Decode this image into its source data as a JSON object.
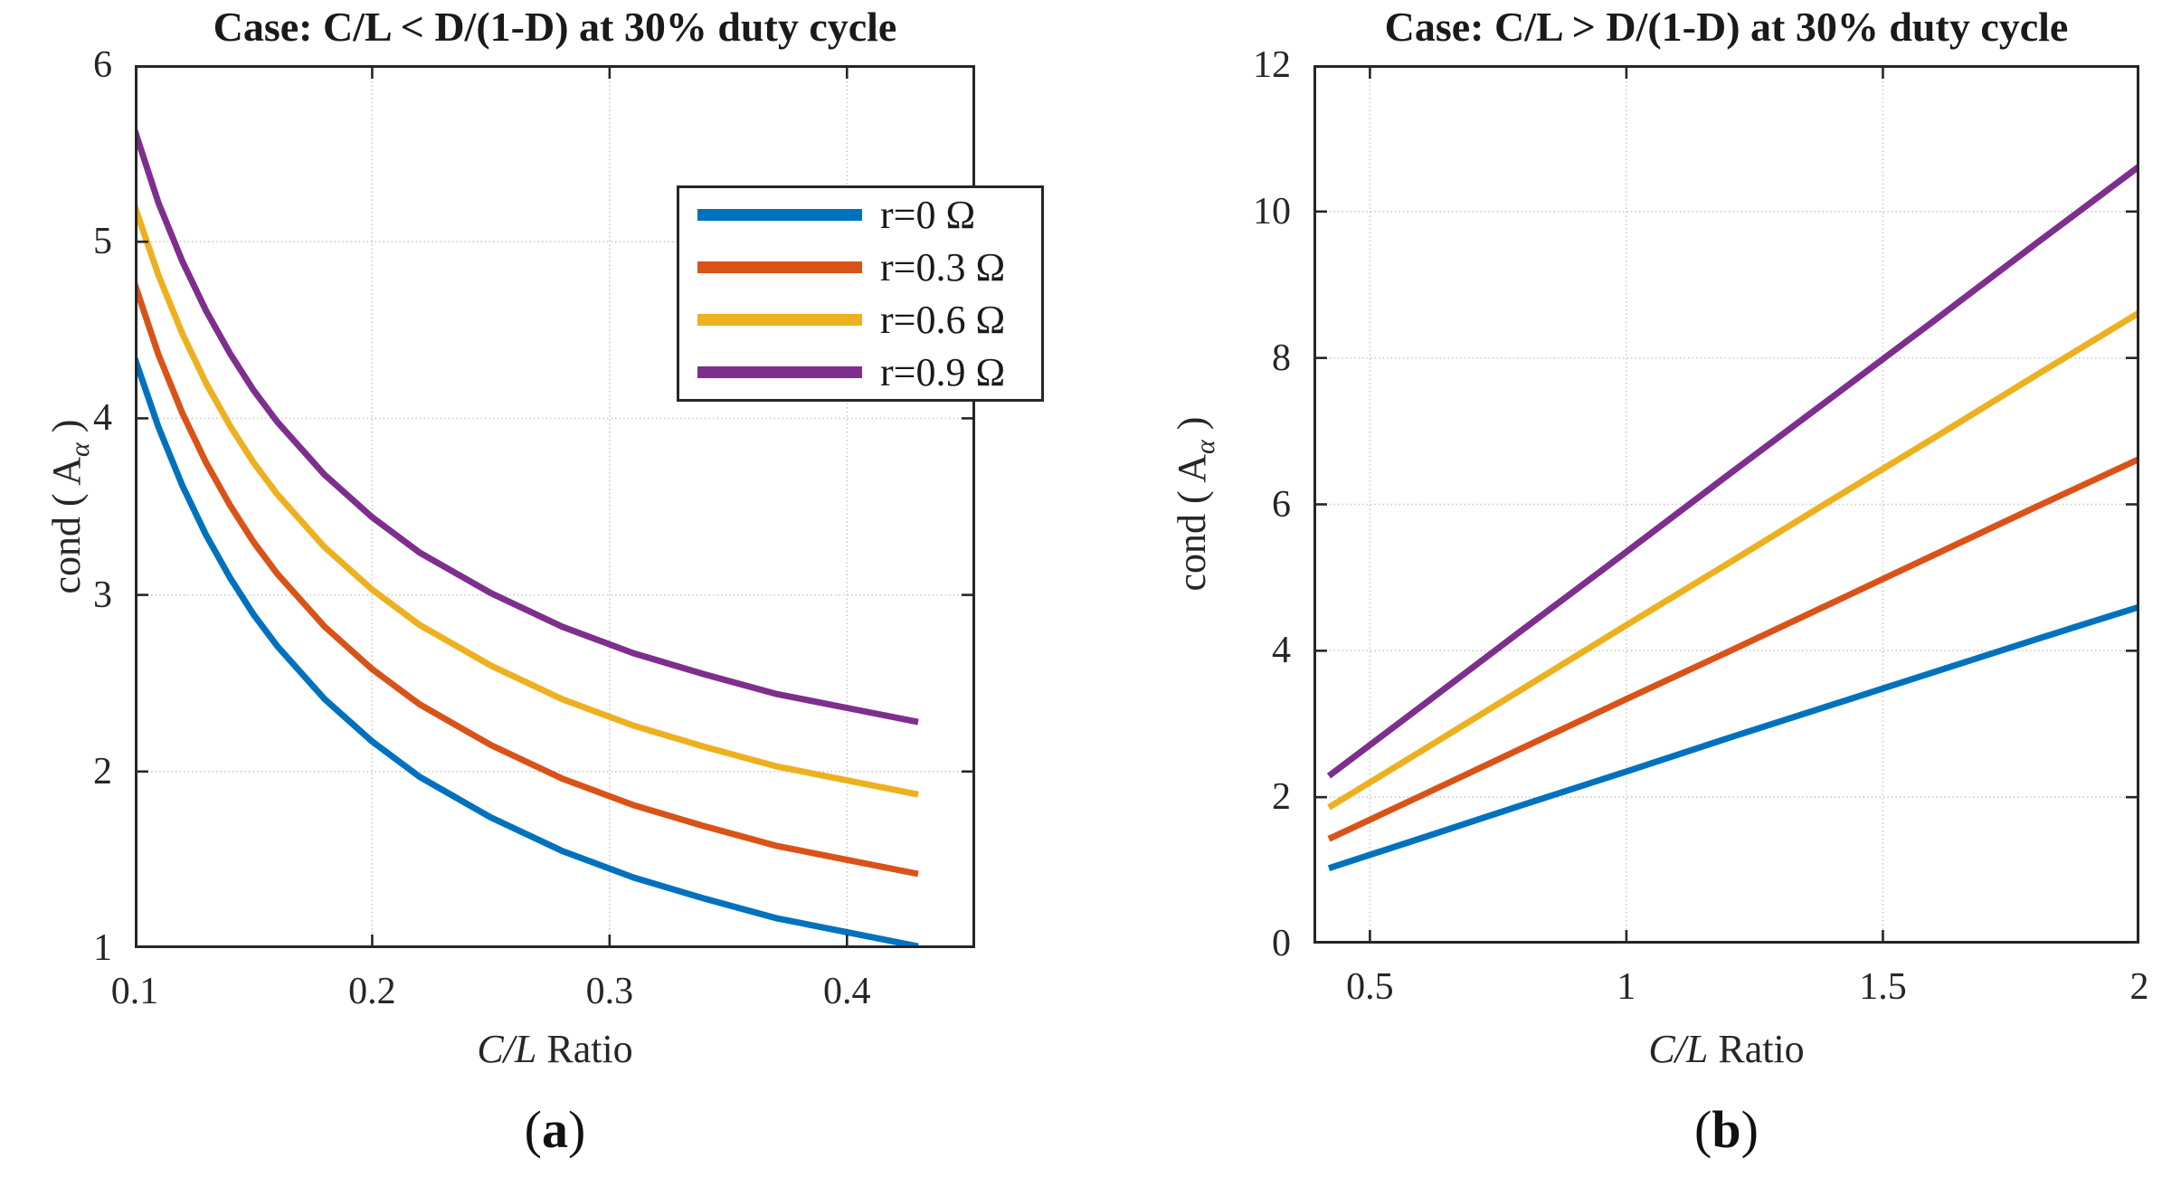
{
  "figure_background": "#ffffff",
  "text_color": "#232323",
  "axis_color": "#262626",
  "grid_color": "#c9c9c9",
  "chart_data": [
    {
      "id": "a",
      "type": "line",
      "title": "Case: C/L < D/(1-D) at 30% duty cycle",
      "caption": {
        "open": "(",
        "letter": "a",
        "close": ")"
      },
      "xlabel": "C/L Ratio",
      "xlabel_parts": {
        "italic": "C/L",
        "rest": " Ratio"
      },
      "ylabel": "cond ( A_α )",
      "ylabel_parts": {
        "pre": "cond ( A",
        "sub": "α",
        "post": " )"
      },
      "xlim": [
        0.1,
        0.454
      ],
      "ylim": [
        1,
        6
      ],
      "xticks": [
        0.1,
        0.2,
        0.3,
        0.4
      ],
      "xtick_labels": [
        "0.1",
        "0.2",
        "0.3",
        "0.4"
      ],
      "yticks": [
        1,
        2,
        3,
        4,
        5,
        6
      ],
      "ytick_labels": [
        "1",
        "2",
        "3",
        "4",
        "5",
        "6"
      ],
      "grid": true,
      "legend_position": "upper-right",
      "x": [
        0.1,
        0.11,
        0.12,
        0.13,
        0.14,
        0.15,
        0.16,
        0.18,
        0.2,
        0.22,
        0.25,
        0.28,
        0.31,
        0.34,
        0.37,
        0.4,
        0.43
      ],
      "series": [
        {
          "name": "r=0 Ω",
          "color": "#0072BD",
          "values": [
            4.34,
            3.95,
            3.62,
            3.34,
            3.1,
            2.89,
            2.71,
            2.41,
            2.17,
            1.97,
            1.74,
            1.55,
            1.4,
            1.28,
            1.17,
            1.09,
            1.01
          ]
        },
        {
          "name": "r=0.3 Ω",
          "color": "#D95319",
          "values": [
            4.76,
            4.36,
            4.03,
            3.75,
            3.51,
            3.3,
            3.12,
            2.82,
            2.58,
            2.38,
            2.15,
            1.96,
            1.81,
            1.69,
            1.58,
            1.5,
            1.42
          ]
        },
        {
          "name": "r=0.6 Ω",
          "color": "#EDB120",
          "values": [
            5.2,
            4.81,
            4.48,
            4.2,
            3.96,
            3.75,
            3.57,
            3.27,
            3.03,
            2.83,
            2.6,
            2.41,
            2.26,
            2.14,
            2.03,
            1.95,
            1.87
          ]
        },
        {
          "name": "r=0.9 Ω",
          "color": "#7E2F8E",
          "values": [
            5.63,
            5.22,
            4.89,
            4.61,
            4.37,
            4.16,
            3.98,
            3.68,
            3.44,
            3.24,
            3.01,
            2.82,
            2.67,
            2.55,
            2.44,
            2.36,
            2.28
          ]
        }
      ]
    },
    {
      "id": "b",
      "type": "line",
      "title": "Case: C/L > D/(1-D) at 30% duty cycle",
      "caption": {
        "open": "(",
        "letter": "b",
        "close": ")"
      },
      "xlabel": "C/L Ratio",
      "xlabel_parts": {
        "italic": "C/L",
        "rest": " Ratio"
      },
      "ylabel": "cond ( A_α )",
      "ylabel_parts": {
        "pre": "cond ( A",
        "sub": "α",
        "post": " )"
      },
      "xlim": [
        0.39,
        2.0
      ],
      "ylim": [
        0,
        12
      ],
      "xticks": [
        0.5,
        1,
        1.5,
        2
      ],
      "xtick_labels": [
        "0.5",
        "1",
        "1.5",
        "2"
      ],
      "yticks": [
        0,
        2,
        4,
        6,
        8,
        10,
        12
      ],
      "ytick_labels": [
        "0",
        "2",
        "4",
        "6",
        "8",
        "10",
        "12"
      ],
      "grid": true,
      "legend_position": "upper-left",
      "x": [
        0.42,
        0.6,
        0.8,
        1.0,
        1.2,
        1.4,
        1.6,
        1.8,
        2.0
      ],
      "series": [
        {
          "name": "r=0 Ω",
          "color": "#0072BD",
          "values": [
            1.03,
            1.44,
            1.9,
            2.35,
            2.81,
            3.26,
            3.71,
            4.16,
            4.6
          ]
        },
        {
          "name": "r=0.3 Ω",
          "color": "#D95319",
          "values": [
            1.43,
            2.02,
            2.68,
            3.34,
            3.99,
            4.65,
            5.31,
            5.97,
            6.62
          ]
        },
        {
          "name": "r=0.6 Ω",
          "color": "#EDB120",
          "values": [
            1.86,
            2.63,
            3.49,
            4.35,
            5.2,
            6.06,
            6.91,
            7.77,
            8.62
          ]
        },
        {
          "name": "r=0.9 Ω",
          "color": "#7E2F8E",
          "values": [
            2.29,
            3.24,
            4.3,
            5.35,
            6.41,
            7.46,
            8.51,
            9.57,
            10.62
          ]
        }
      ]
    }
  ]
}
